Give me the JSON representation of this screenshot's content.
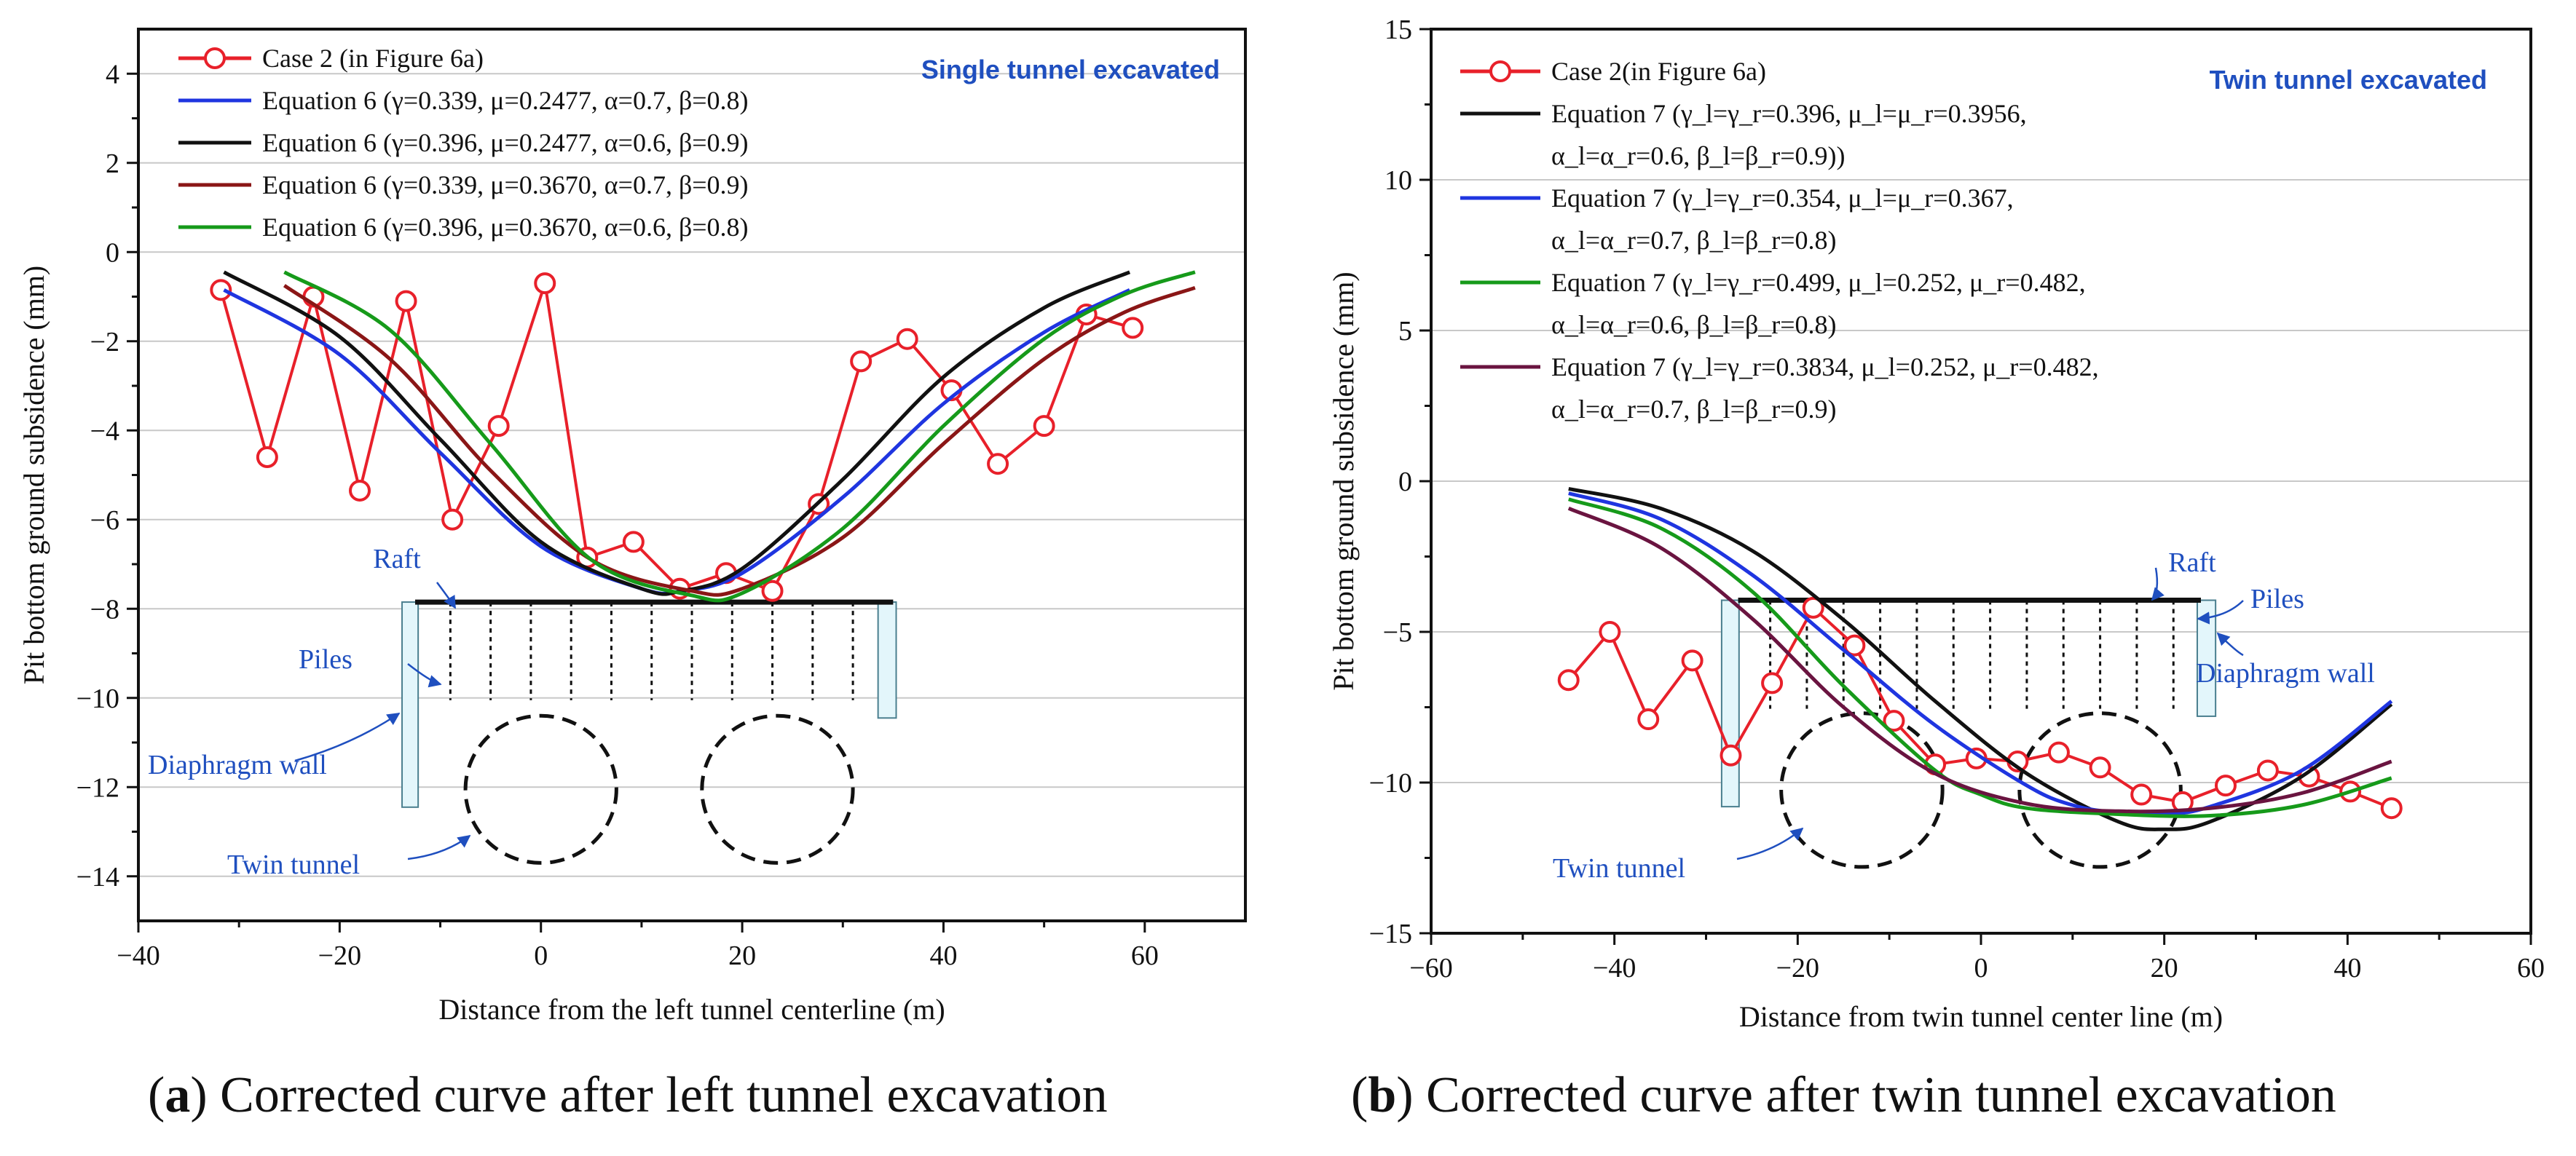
{
  "chart_data": [
    {
      "type": "line",
      "panel": "a",
      "caption_letter": "a",
      "caption_text": "Corrected curve after left tunnel excavation",
      "corner_label": "Single tunnel excavated",
      "xlabel": "Distance from the left tunnel centerline (m)",
      "ylabel": "Pit bottom ground subsidence (mm)",
      "xlim": [
        -40,
        70
      ],
      "ylim": [
        -15,
        5
      ],
      "xticks": [
        -40,
        -20,
        0,
        20,
        40,
        60
      ],
      "yticks": [
        -14,
        -12,
        -10,
        -8,
        -6,
        -4,
        -2,
        0,
        2,
        4
      ],
      "grid": true,
      "legend_position": "top-left",
      "series": [
        {
          "name": "Case 2 (in Figure 6a)",
          "kind": "markers",
          "color": "#e8202a",
          "x": [
            -31.8,
            -27.2,
            -22.6,
            -18,
            -13.4,
            -8.8,
            -4.2,
            0.4,
            4.6,
            9.2,
            13.8,
            18.4,
            23,
            27.6,
            31.8,
            36.4,
            40.8,
            45.4,
            50,
            54.2,
            58.8
          ],
          "y": [
            -0.85,
            -4.6,
            -1.0,
            -5.35,
            -1.1,
            -6.0,
            -3.9,
            -0.7,
            -6.85,
            -6.5,
            -7.55,
            -7.2,
            -7.6,
            -5.65,
            -2.45,
            -1.95,
            -3.1,
            -4.75,
            -3.9,
            -1.4,
            -1.7
          ]
        },
        {
          "name": "Equation 6 (γ=0.339, μ=0.2477, α=0.7, β=0.8)",
          "kind": "curve",
          "color": "#1f35e0",
          "x": [
            -31.5,
            -20,
            -10,
            0,
            10,
            14,
            20,
            30,
            40,
            50,
            58.5
          ],
          "y": [
            -0.85,
            -2.3,
            -4.5,
            -6.6,
            -7.55,
            -7.6,
            -7.2,
            -5.5,
            -3.4,
            -1.8,
            -0.85
          ]
        },
        {
          "name": "Equation 6 (γ=0.396, μ=0.2477, α=0.6, β=0.9)",
          "kind": "curve",
          "color": "#111111",
          "x": [
            -31.5,
            -20,
            -10,
            0,
            10,
            14,
            20,
            30,
            40,
            50,
            58.5
          ],
          "y": [
            -0.45,
            -1.9,
            -4.2,
            -6.5,
            -7.55,
            -7.6,
            -7.1,
            -5.1,
            -2.8,
            -1.25,
            -0.45
          ]
        },
        {
          "name": "Equation 6 (γ=0.339, μ=0.3670, α=0.7, β=0.9)",
          "kind": "curve",
          "color": "#8a1616",
          "x": [
            -25.5,
            -15,
            -5,
            5,
            15,
            20,
            30,
            40,
            50,
            58,
            65
          ],
          "y": [
            -0.75,
            -2.4,
            -4.9,
            -6.9,
            -7.6,
            -7.55,
            -6.4,
            -4.3,
            -2.4,
            -1.35,
            -0.8
          ]
        },
        {
          "name": "Equation 6 (γ=0.396, μ=0.3670, α=0.6, β=0.8)",
          "kind": "curve",
          "color": "#169a1a",
          "x": [
            -25.5,
            -15,
            -5,
            5,
            15,
            20,
            30,
            40,
            50,
            58,
            65
          ],
          "y": [
            -0.45,
            -1.75,
            -4.3,
            -6.9,
            -7.7,
            -7.65,
            -6.2,
            -3.9,
            -1.95,
            -0.95,
            -0.45
          ]
        }
      ],
      "annotations": {
        "raft": "Raft",
        "piles": "Piles",
        "diaphragm_wall": "Diaphragm wall",
        "twin_tunnel": "Twin tunnel"
      },
      "structure": {
        "raft": {
          "x0": -12.5,
          "x1": 35,
          "y": -7.85
        },
        "wall_left": {
          "x0": -13.8,
          "x1": -12.2,
          "y_top": -7.85,
          "y_bottom": -12.45
        },
        "wall_right": {
          "x0": 33.5,
          "x1": 35.3,
          "y_top": -7.85,
          "y_bottom": -10.45
        },
        "piles_x": [
          -9,
          -5,
          -1,
          3,
          7,
          11,
          15,
          19,
          23,
          27,
          31
        ],
        "pile_bottom_y": -10.05,
        "tunnel_left": {
          "cx": 0,
          "cy": -12.05,
          "rx": 7.5,
          "ry": -1.65
        },
        "tunnel_right": {
          "cx": 23.5,
          "cy": -12.05,
          "rx": 7.5,
          "ry": -1.65
        }
      }
    },
    {
      "type": "line",
      "panel": "b",
      "caption_letter": "b",
      "caption_text": "Corrected curve after twin tunnel excavation",
      "corner_label": "Twin tunnel excavated",
      "xlabel": "Distance from twin tunnel center line  (m)",
      "ylabel": "Pit bottom ground subsidence (mm)",
      "xlim": [
        -60,
        60
      ],
      "ylim": [
        -15,
        15
      ],
      "xticks": [
        -60,
        -40,
        -20,
        0,
        20,
        40,
        60
      ],
      "yticks": [
        -15,
        -10,
        -5,
        0,
        5,
        10,
        15
      ],
      "grid": true,
      "legend_position": "top-left",
      "series": [
        {
          "name": "Case 2(in Figure 6a)",
          "kind": "markers",
          "color": "#e8202a",
          "x": [
            -45,
            -40.5,
            -36.3,
            -31.5,
            -27.3,
            -22.8,
            -18.3,
            -13.8,
            -9.5,
            -5,
            -0.5,
            4,
            8.5,
            13,
            17.5,
            22,
            26.7,
            31.3,
            35.8,
            40.3,
            44.8
          ],
          "y": [
            -6.6,
            -5.0,
            -7.9,
            -5.95,
            -9.1,
            -6.7,
            -4.2,
            -5.45,
            -7.95,
            -9.4,
            -9.2,
            -9.3,
            -9.0,
            -9.5,
            -10.4,
            -10.65,
            -10.1,
            -9.6,
            -9.8,
            -10.3,
            -10.85
          ]
        },
        {
          "name": "Equation 7 (γ_l=γ_r=0.396, μ_l=μ_r=0.3956,\nα_l=α_r=0.6, β_l=β_r=0.9))",
          "kind": "curve",
          "color": "#111111",
          "x": [
            -45,
            -35,
            -25,
            -15,
            -5,
            5,
            15,
            20,
            25,
            35,
            44.8
          ],
          "y": [
            -0.25,
            -0.9,
            -2.3,
            -4.6,
            -7.3,
            -9.7,
            -11.3,
            -11.55,
            -11.3,
            -9.8,
            -7.4
          ]
        },
        {
          "name": "Equation 7 (γ_l=γ_r=0.354, μ_l=μ_r=0.367,\nα_l=α_r=0.7, β_l=β_r=0.8)",
          "kind": "curve",
          "color": "#1f35e0",
          "x": [
            -45,
            -35,
            -25,
            -15,
            -5,
            5,
            10,
            15,
            20,
            25,
            35,
            44.8
          ],
          "y": [
            -0.4,
            -1.25,
            -3.1,
            -5.6,
            -8.1,
            -10.1,
            -10.75,
            -11.0,
            -11.05,
            -10.8,
            -9.6,
            -7.3
          ]
        },
        {
          "name": "Equation 7 (γ_l=γ_r=0.499, μ_l=0.252, μ_r=0.482,\nα_l=α_r=0.6, β_l=β_r=0.8)",
          "kind": "curve",
          "color": "#169a1a",
          "x": [
            -45,
            -35,
            -25,
            -15,
            -5,
            0,
            5,
            15,
            25,
            35,
            44.8
          ],
          "y": [
            -0.6,
            -1.55,
            -3.65,
            -6.8,
            -9.6,
            -10.4,
            -10.85,
            -11.05,
            -11.1,
            -10.75,
            -9.85
          ]
        },
        {
          "name": "Equation 7 (γ_l=γ_r=0.3834, μ_l=0.252, μ_r=0.482,\nα_l=α_r=0.7, β_l=β_r=0.9)",
          "kind": "curve",
          "color": "#6a1440",
          "x": [
            -45,
            -35,
            -25,
            -15,
            -5,
            5,
            15,
            25,
            35,
            44.8
          ],
          "y": [
            -0.9,
            -2.2,
            -4.55,
            -7.5,
            -9.7,
            -10.7,
            -10.95,
            -10.85,
            -10.35,
            -9.3
          ]
        }
      ],
      "annotations": {
        "raft": "Raft",
        "piles": "Piles",
        "diaphragm_wall": "Diaphragm wall",
        "twin_tunnel": "Twin tunnel"
      },
      "structure": {
        "raft": {
          "x0": -26.5,
          "x1": 24,
          "y": -3.95
        },
        "wall_left": {
          "x0": -28.3,
          "x1": -26.4,
          "y_top": -3.95,
          "y_bottom": -10.8
        },
        "wall_right": {
          "x0": 23.6,
          "x1": 25.6,
          "y_top": -3.95,
          "y_bottom": -7.8
        },
        "piles_x": [
          -23,
          -19,
          -15,
          -11,
          -7,
          -3,
          1,
          5,
          9,
          13,
          17,
          21
        ],
        "pile_bottom_y": -7.55,
        "tunnel_left": {
          "cx": -13,
          "cy": -10.25,
          "rx": 8.8,
          "ry": -2.55
        },
        "tunnel_right": {
          "cx": 13,
          "cy": -10.25,
          "rx": 8.8,
          "ry": -2.55
        }
      }
    }
  ]
}
